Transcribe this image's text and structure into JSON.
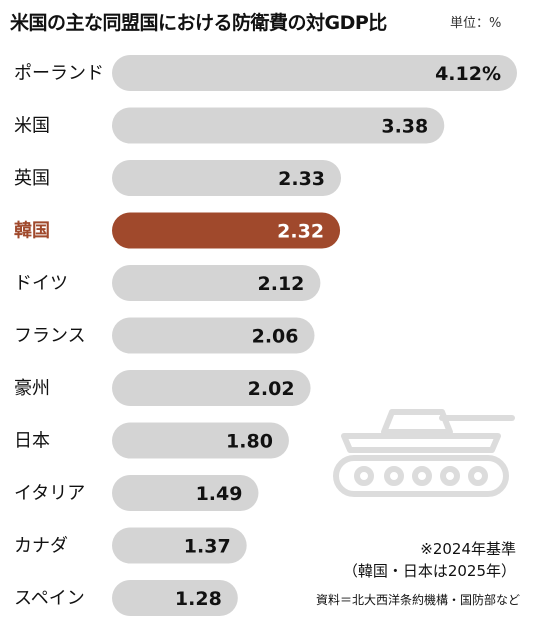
{
  "title": "米国の主な同盟国における防衛費の対GDP比",
  "unit": "単位：%",
  "colors": {
    "bar": "#d4d4d4",
    "highlight": "#a0492c",
    "icon": "#dcdcdc"
  },
  "icon": "tank-icon",
  "chart_data": {
    "type": "bar",
    "orientation": "horizontal",
    "title": "米国の主な同盟国における防衛費の対GDP比",
    "unit": "単位：%",
    "categories": [
      "ポーランド",
      "米国",
      "英国",
      "韓国",
      "ドイツ",
      "フランス",
      "豪州",
      "日本",
      "イタリア",
      "カナダ",
      "スペイン"
    ],
    "values": [
      4.12,
      3.38,
      2.33,
      2.32,
      2.12,
      2.06,
      2.02,
      1.8,
      1.49,
      1.37,
      1.28
    ],
    "value_labels": [
      "4.12%",
      "3.38",
      "2.33",
      "2.32",
      "2.12",
      "2.06",
      "2.02",
      "1.80",
      "1.49",
      "1.37",
      "1.28"
    ],
    "highlight": "韓国",
    "xlim": [
      0,
      4.12
    ],
    "grid": false
  },
  "note": {
    "line1": "※2024年基準",
    "line2": "（韓国・日本は2025年）"
  },
  "source": "資料＝北大西洋条約機構・国防部など"
}
